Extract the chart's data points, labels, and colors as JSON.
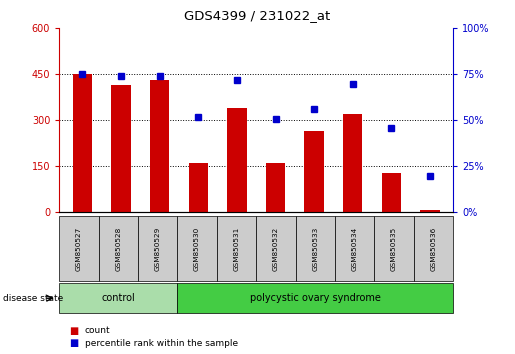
{
  "title": "GDS4399 / 231022_at",
  "samples": [
    "GSM850527",
    "GSM850528",
    "GSM850529",
    "GSM850530",
    "GSM850531",
    "GSM850532",
    "GSM850533",
    "GSM850534",
    "GSM850535",
    "GSM850536"
  ],
  "counts": [
    450,
    415,
    430,
    160,
    340,
    162,
    265,
    320,
    130,
    8
  ],
  "percentiles": [
    75,
    74,
    74,
    52,
    72,
    51,
    56,
    70,
    46,
    20
  ],
  "groups": [
    "control",
    "control",
    "control",
    "polycystic ovary syndrome",
    "polycystic ovary syndrome",
    "polycystic ovary syndrome",
    "polycystic ovary syndrome",
    "polycystic ovary syndrome",
    "polycystic ovary syndrome",
    "polycystic ovary syndrome"
  ],
  "ylim_left": [
    0,
    600
  ],
  "ylim_right": [
    0,
    100
  ],
  "yticks_left": [
    0,
    150,
    300,
    450,
    600
  ],
  "yticks_right": [
    0,
    25,
    50,
    75,
    100
  ],
  "bar_color": "#cc0000",
  "dot_color": "#0000cc",
  "control_color": "#aaddaa",
  "pcos_color": "#44cc44",
  "label_bg_color": "#cccccc",
  "bar_width": 0.5,
  "legend_count_label": "count",
  "legend_pct_label": "percentile rank within the sample",
  "group_label": "disease state"
}
